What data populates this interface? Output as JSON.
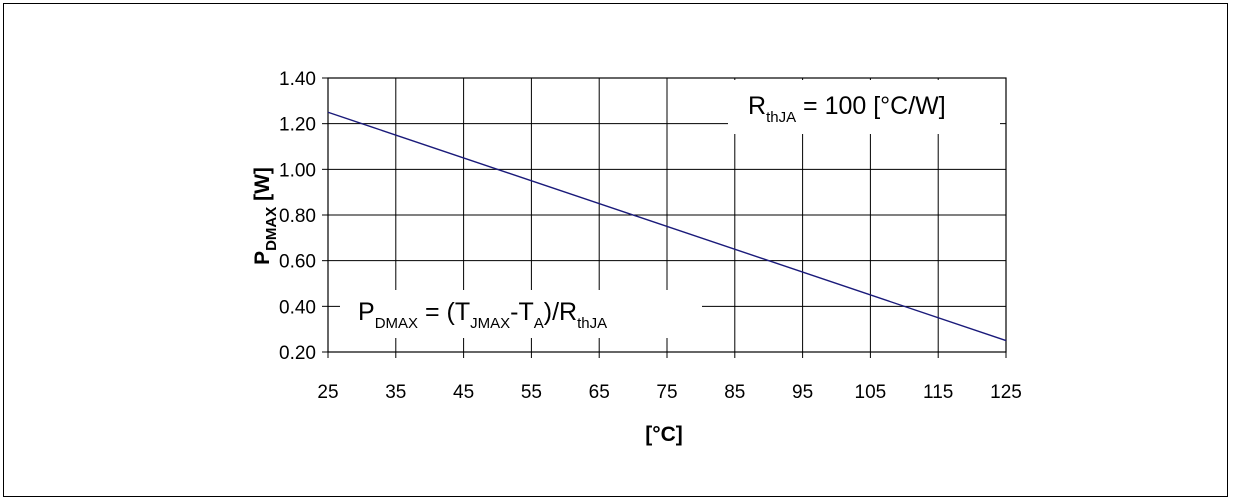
{
  "chart_data": {
    "type": "line",
    "x": [
      25,
      125
    ],
    "series": [
      {
        "name": "",
        "values": [
          1.25,
          0.25
        ]
      }
    ],
    "xticks": [
      "25",
      "35",
      "45",
      "55",
      "65",
      "75",
      "85",
      "95",
      "105",
      "115",
      "125"
    ],
    "yticks": [
      "0.20",
      "0.40",
      "0.60",
      "0.80",
      "1.00",
      "1.20",
      "1.40"
    ],
    "xlim": [
      25,
      125
    ],
    "ylim": [
      0.2,
      1.4
    ],
    "grid": true,
    "xlabel": "[°C]",
    "ylabel": {
      "main": "P",
      "sub": "DMAX",
      "rest": " [W]"
    },
    "line_color": "#1a1a7a",
    "annotations": {
      "rth": {
        "main": "R",
        "sub": "thJA",
        "rest": " = 100 [°C/W]"
      },
      "formula": {
        "p": "P",
        "p_sub": "DMAX",
        "eq": " = (T",
        "tj_sub": "JMAX",
        "dash": "-T",
        "ta_sub": "A",
        "div": ")/R",
        "r_sub": "thJA"
      }
    }
  }
}
